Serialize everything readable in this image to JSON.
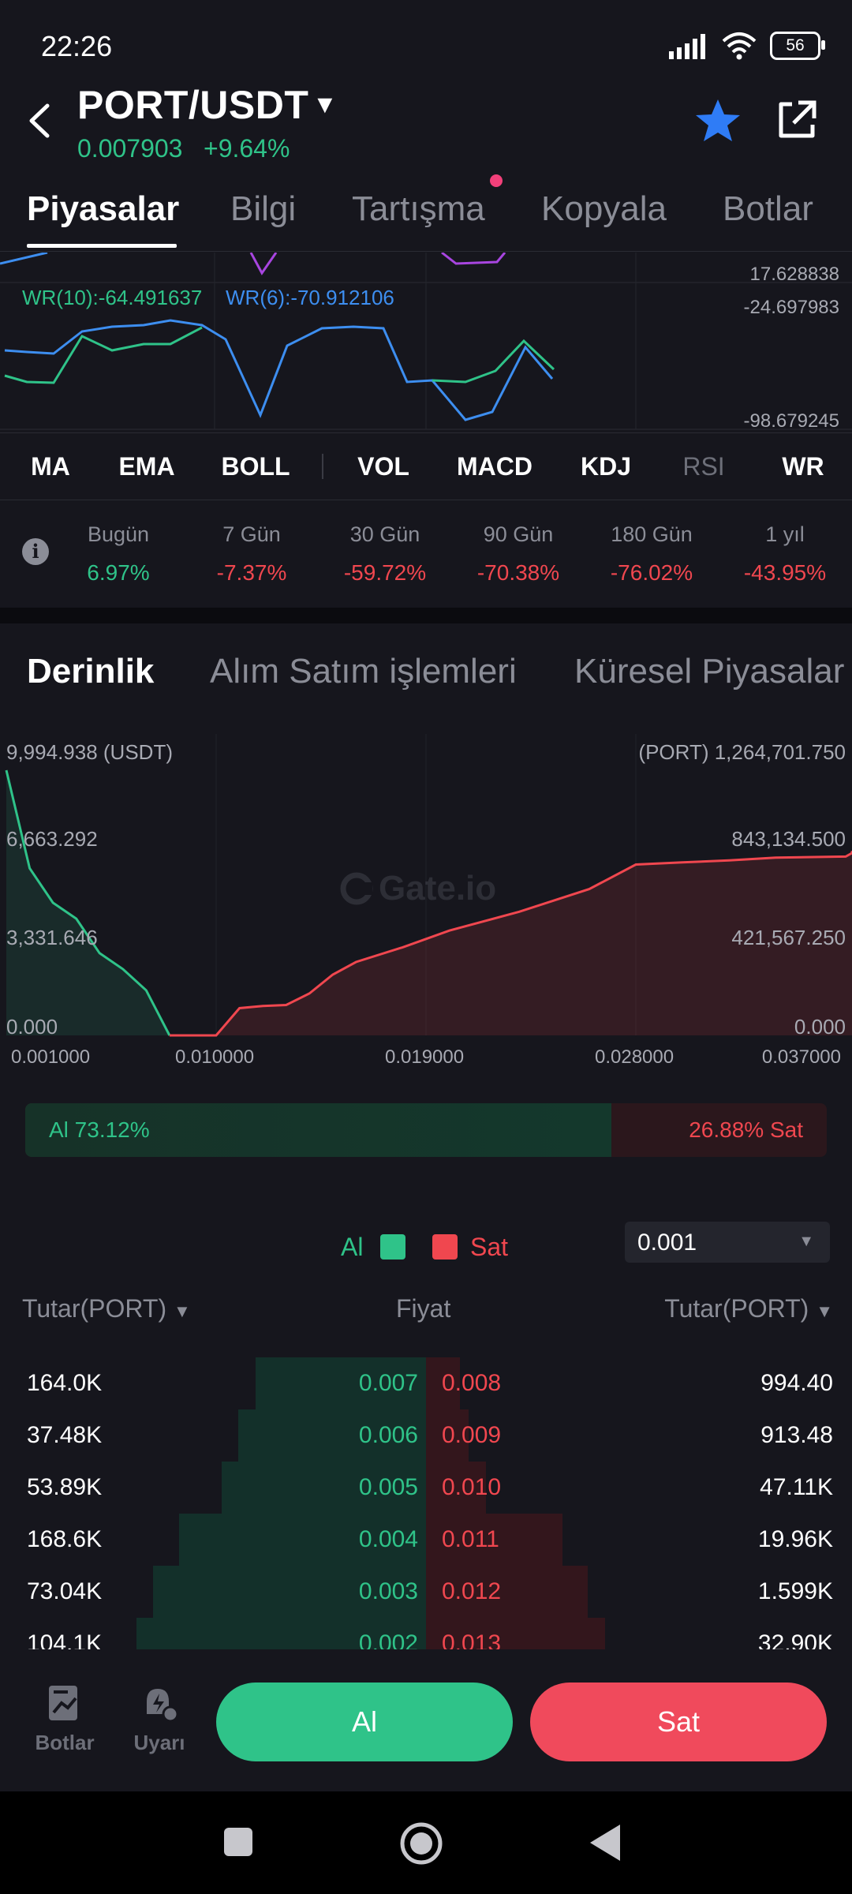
{
  "status_bar": {
    "time": "22:26",
    "battery": "56"
  },
  "header": {
    "pair": "PORT/USDT",
    "price": "0.007903",
    "change": "+9.64%"
  },
  "tabs": [
    "Piyasalar",
    "Bilgi",
    "Tartışma",
    "Kopyala",
    "Botlar"
  ],
  "wr_chart": {
    "top_axis_value": "17.628838",
    "axis_top": "-24.697983",
    "axis_bottom": "-98.679245",
    "wr10_label": "WR(10):-64.491637",
    "wr6_label": "WR(6):-70.912106"
  },
  "indicators": [
    "MA",
    "EMA",
    "BOLL",
    "VOL",
    "MACD",
    "KDJ",
    "RSI",
    "WR"
  ],
  "performance": [
    {
      "label": "Bugün",
      "value": "6.97%"
    },
    {
      "label": "7 Gün",
      "value": "-7.37%"
    },
    {
      "label": "30 Gün",
      "value": "-59.72%"
    },
    {
      "label": "90 Gün",
      "value": "-70.38%"
    },
    {
      "label": "180 Gün",
      "value": "-76.02%"
    },
    {
      "label": "1 yıl",
      "value": "-43.95%"
    }
  ],
  "depth_tabs": [
    "Derinlik",
    "Alım Satım işlemleri",
    "Küresel Piyasalar"
  ],
  "depth_chart": {
    "watermark": "Gate.io",
    "left_axis": [
      "9,994.938 (USDT)",
      "6,663.292",
      "3,331.646",
      "0.000"
    ],
    "right_axis": [
      "(PORT) 1,264,701.750",
      "843,134.500",
      "421,567.250",
      "0.000"
    ],
    "x_ticks": [
      "0.001000",
      "0.010000",
      "0.019000",
      "0.028000",
      "0.037000"
    ],
    "bids": [
      [
        0.001,
        9994.9
      ],
      [
        0.002,
        6300
      ],
      [
        0.003,
        5000
      ],
      [
        0.004,
        4400
      ],
      [
        0.005,
        3100
      ],
      [
        0.006,
        2500
      ],
      [
        0.007,
        1700
      ],
      [
        0.008,
        0
      ]
    ],
    "asks": [
      [
        0.008,
        0
      ],
      [
        0.009,
        2
      ],
      [
        0.01,
        100
      ],
      [
        0.011,
        130000
      ],
      [
        0.012,
        140000
      ],
      [
        0.013,
        145000
      ],
      [
        0.014,
        200000
      ],
      [
        0.015,
        290000
      ],
      [
        0.016,
        350000
      ],
      [
        0.018,
        420000
      ],
      [
        0.02,
        500000
      ],
      [
        0.023,
        590000
      ],
      [
        0.026,
        698000
      ],
      [
        0.028,
        815000
      ],
      [
        0.03,
        825000
      ],
      [
        0.032,
        835000
      ],
      [
        0.034,
        848000
      ],
      [
        0.037,
        853000
      ],
      [
        0.04,
        870000
      ],
      [
        0.042,
        878000
      ],
      [
        0.045,
        880000
      ]
    ]
  },
  "ratio": {
    "buy_pct": 73.12,
    "buy_label": "Al 73.12%",
    "sell_label": "26.88% Sat"
  },
  "legend": {
    "buy": "Al",
    "sell": "Sat"
  },
  "precision": "0.001",
  "order_book": {
    "col_left": "Tutar(PORT)",
    "col_mid": "Fiyat",
    "col_right": "Tutar(PORT)",
    "rows": [
      {
        "bid_amount": "164.0K",
        "bid_price": "0.007",
        "ask_price": "0.008",
        "ask_amount": "994.40"
      },
      {
        "bid_amount": "37.48K",
        "bid_price": "0.006",
        "ask_price": "0.009",
        "ask_amount": "913.48"
      },
      {
        "bid_amount": "53.89K",
        "bid_price": "0.005",
        "ask_price": "0.010",
        "ask_amount": "47.11K"
      },
      {
        "bid_amount": "168.6K",
        "bid_price": "0.004",
        "ask_price": "0.011",
        "ask_amount": "19.96K"
      },
      {
        "bid_amount": "73.04K",
        "bid_price": "0.003",
        "ask_price": "0.012",
        "ask_amount": "1.599K"
      },
      {
        "bid_amount": "104.1K",
        "bid_price": "0.002",
        "ask_price": "0.013",
        "ask_amount": "32.90K"
      }
    ],
    "bid_depth": [
      0.2,
      0.22,
      0.24,
      0.29,
      0.32,
      0.34
    ],
    "ask_depth": [
      0.04,
      0.05,
      0.07,
      0.16,
      0.19,
      0.21
    ]
  },
  "bottom_bar": {
    "bots_label": "Botlar",
    "alerts_label": "Uyarı",
    "buy_button": "Al",
    "sell_button": "Sat"
  },
  "colors": {
    "buy": "#2fc389",
    "sell": "#f0474f",
    "accent_star": "#2f7cf6",
    "background": "#16161d"
  },
  "icons": [
    "back-arrow-icon",
    "caret-down-icon",
    "star-icon",
    "share-icon",
    "info-icon",
    "bots-icon",
    "alert-icon",
    "square-icon",
    "home-icon",
    "back-triangle-icon"
  ]
}
